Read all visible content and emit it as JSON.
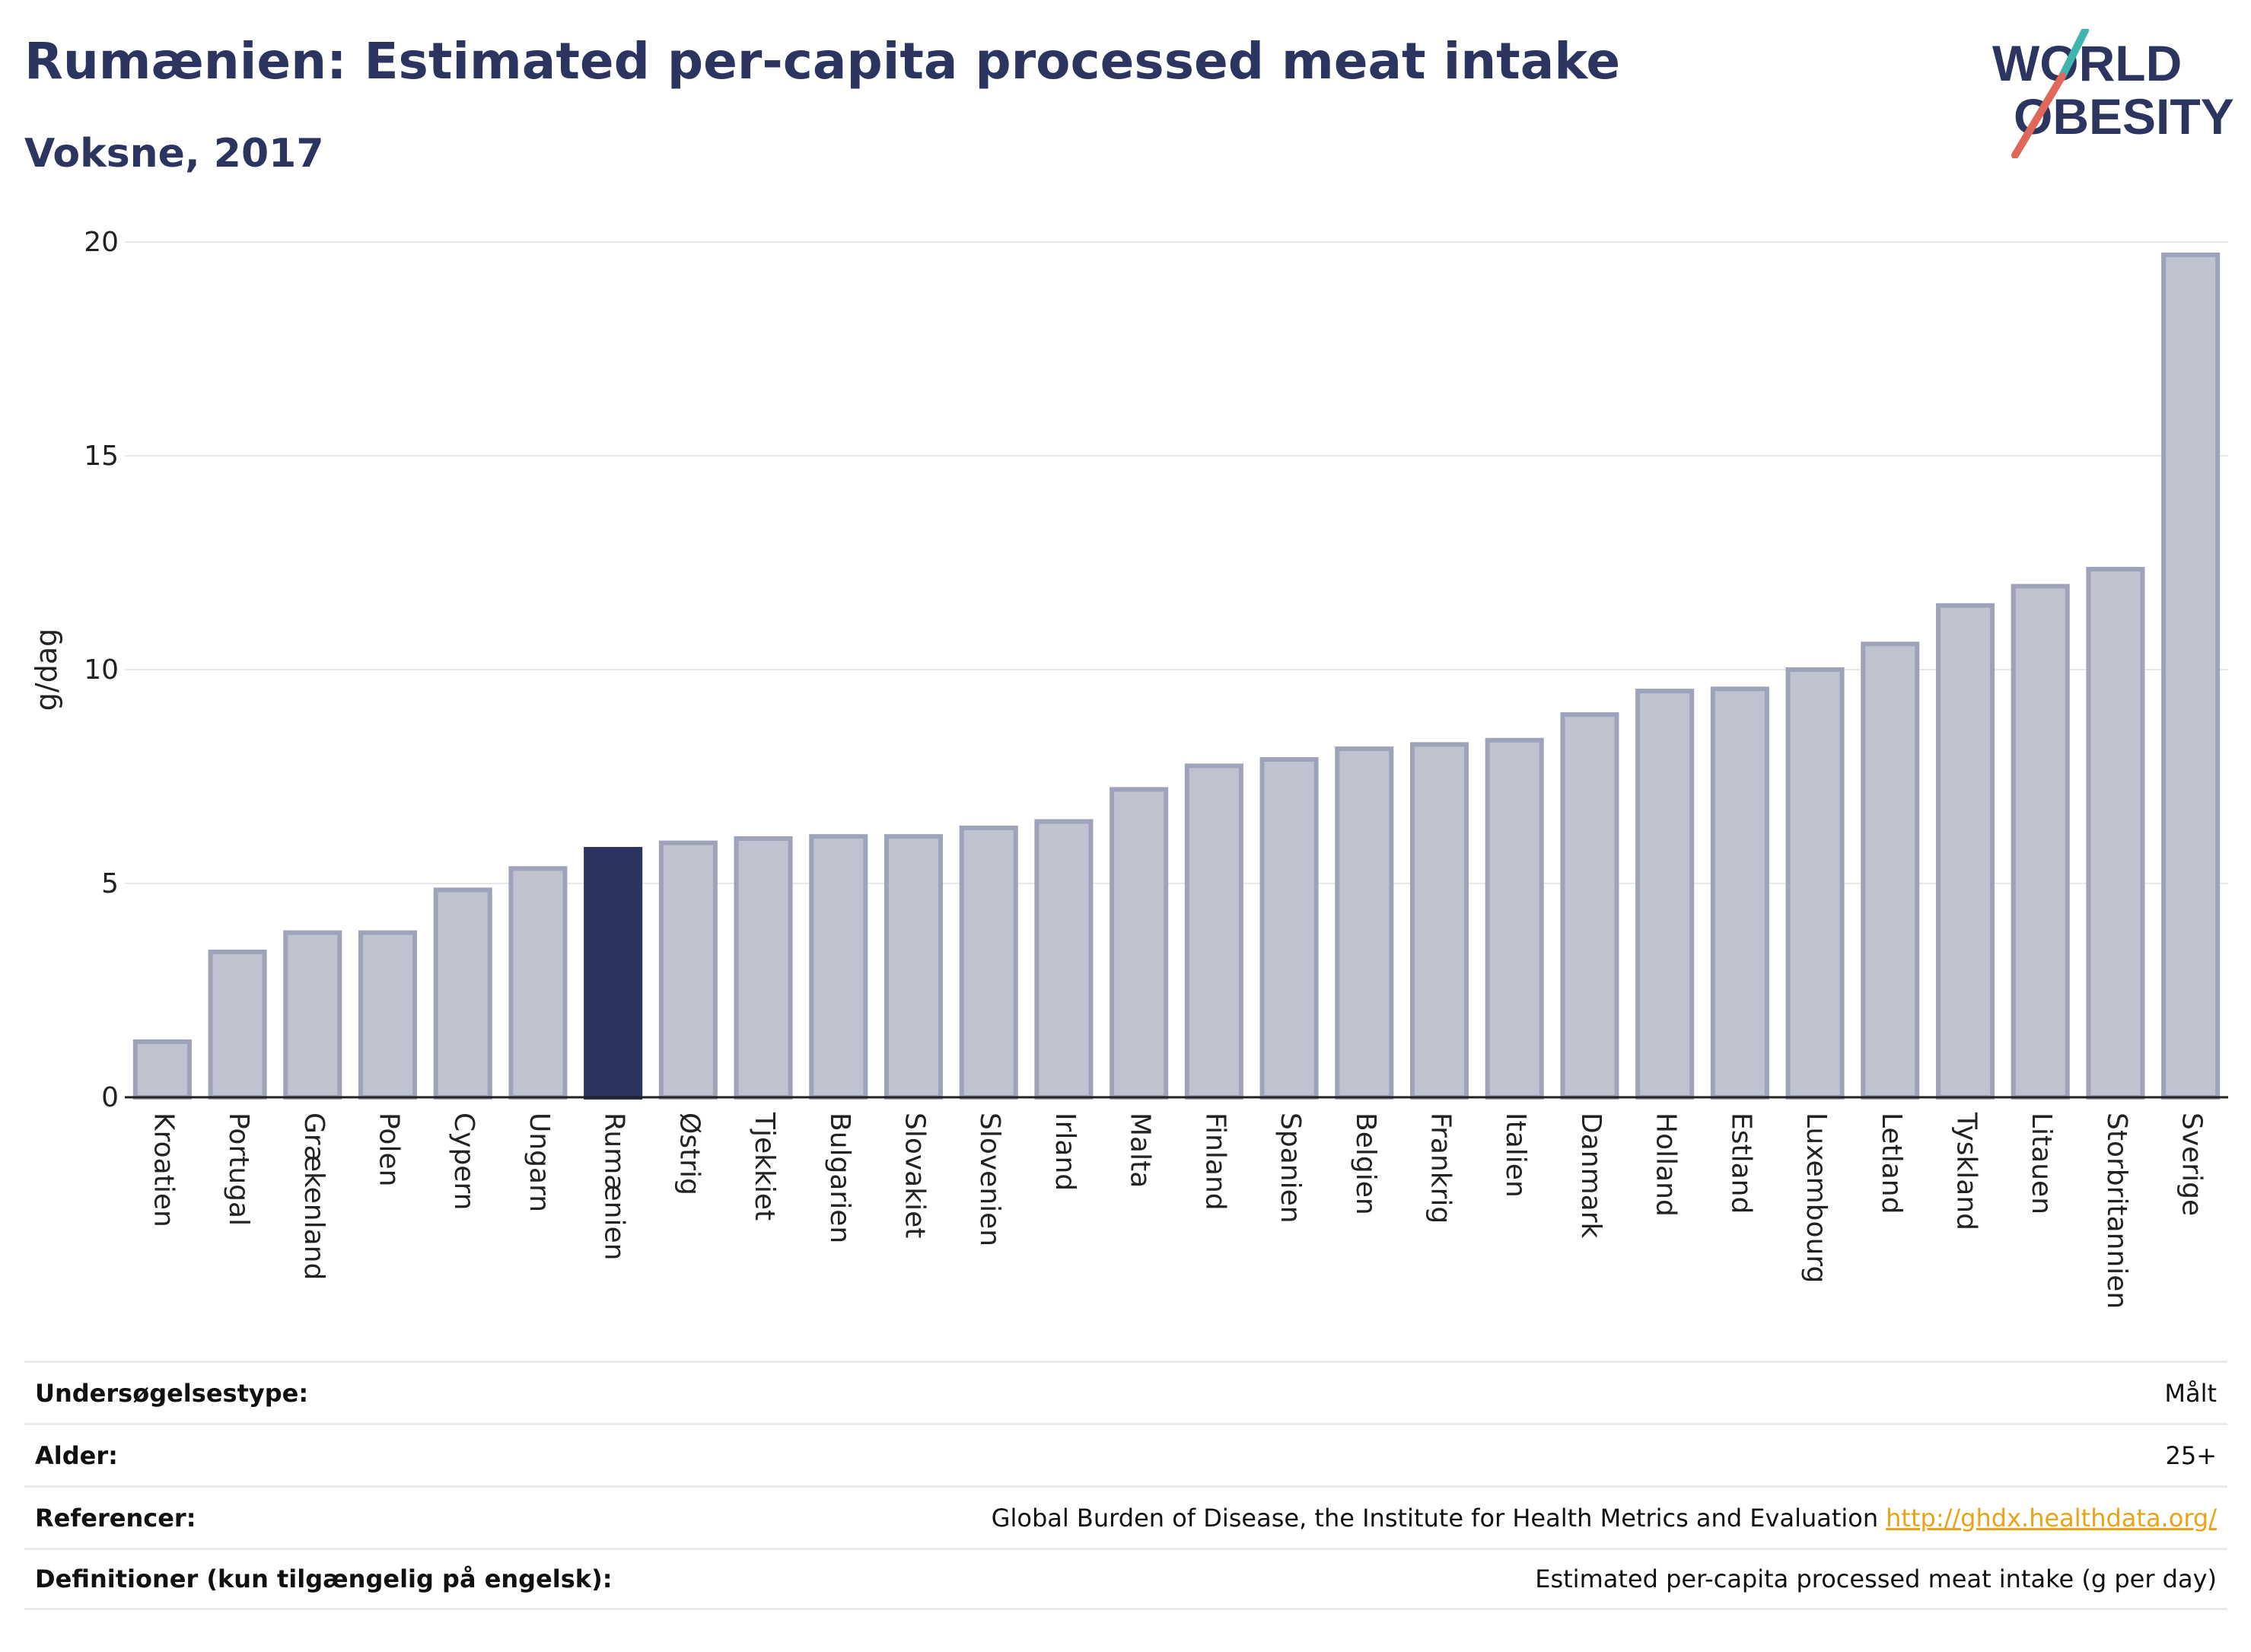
{
  "header": {
    "title": "Rumænien: Estimated per-capita processed meat intake",
    "subtitle": "Voksne, 2017"
  },
  "logo": {
    "line1": "WORLD",
    "line2": "OBESITY"
  },
  "colors": {
    "highlight": "#2b3560",
    "bar_fill": "#bfc3d0",
    "bar_stroke": "#9ea3bb",
    "grid": "#e6e8ec",
    "axis_text": "#222222"
  },
  "chart_data": {
    "type": "bar",
    "ylabel": "g/dag",
    "ylim": [
      0,
      20
    ],
    "yticks": [
      0,
      5,
      10,
      15,
      20
    ],
    "highlight": "Rumænien",
    "categories": [
      "Kroatien",
      "Portugal",
      "Grækenland",
      "Polen",
      "Cypern",
      "Ungarn",
      "Rumænien",
      "Østrig",
      "Tjekkiet",
      "Bulgarien",
      "Slovakiet",
      "Slovenien",
      "Irland",
      "Malta",
      "Finland",
      "Spanien",
      "Belgien",
      "Frankrig",
      "Italien",
      "Danmark",
      "Holland",
      "Estland",
      "Luxembourg",
      "Letland",
      "Tyskland",
      "Litauen",
      "Storbritannien",
      "Sverige"
    ],
    "values": [
      1.3,
      3.4,
      3.85,
      3.85,
      4.85,
      5.35,
      5.8,
      5.95,
      6.05,
      6.1,
      6.1,
      6.3,
      6.45,
      7.2,
      7.75,
      7.9,
      8.15,
      8.25,
      8.35,
      8.95,
      9.5,
      9.55,
      10.0,
      10.6,
      11.5,
      11.95,
      12.35,
      19.7
    ]
  },
  "info": [
    {
      "label": "Undersøgelsestype:",
      "value": "Målt"
    },
    {
      "label": "Alder:",
      "value": "25+"
    },
    {
      "label": "Referencer:",
      "value": "Global Burden of Disease, the Institute for Health Metrics and Evaluation",
      "link": "http://ghdx.healthdata.org/"
    },
    {
      "label": "Definitioner (kun tilgængelig på engelsk):",
      "value": "Estimated per-capita processed meat intake (g per day)"
    }
  ]
}
